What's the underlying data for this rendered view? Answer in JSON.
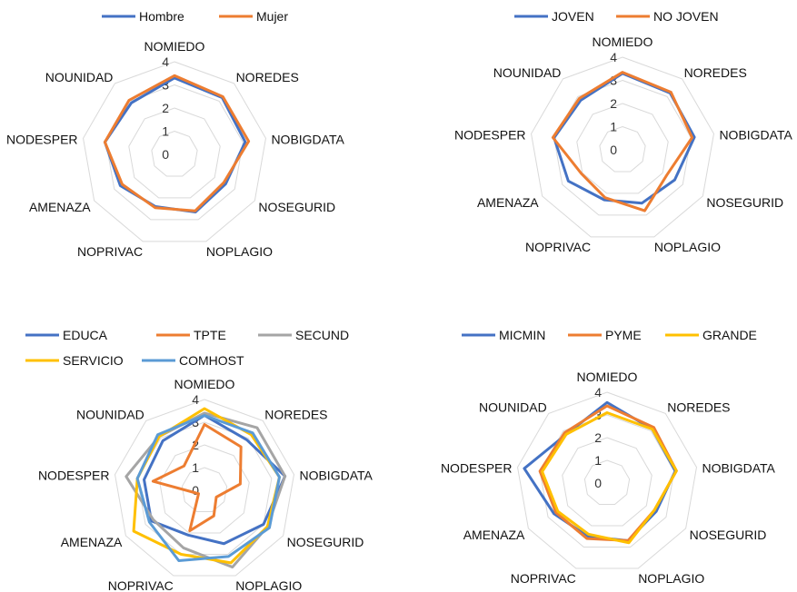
{
  "chart_data": [
    {
      "type": "radar",
      "axes": [
        "NOMIEDO",
        "NOREDES",
        "NOBIGDATA",
        "NOSEGURID",
        "NOPLAGIO",
        "NOPRIVAC",
        "AMENAZA",
        "NODESPER",
        "NOUNIDAD"
      ],
      "ticks": [
        "0",
        "1",
        "2",
        "3",
        "4"
      ],
      "rlim": [
        0,
        4
      ],
      "grid": true,
      "legend": "top",
      "series": [
        {
          "name": "Hombre",
          "color": "#4472C4",
          "values": [
            3.3,
            3.2,
            3.1,
            2.55,
            2.65,
            2.4,
            2.7,
            3.05,
            2.9
          ]
        },
        {
          "name": "Mujer",
          "color": "#ED7D31",
          "values": [
            3.4,
            3.25,
            3.25,
            2.45,
            2.6,
            2.45,
            2.6,
            3.05,
            3.05
          ]
        }
      ]
    },
    {
      "type": "radar",
      "axes": [
        "NOMIEDO",
        "NOREDES",
        "NOBIGDATA",
        "NOSEGURID",
        "NOPLAGIO",
        "NOPRIVAC",
        "AMENAZA",
        "NODESPER",
        "NOUNIDAD"
      ],
      "ticks": [
        "0",
        "1",
        "2",
        "3",
        "4"
      ],
      "rlim": [
        0,
        4
      ],
      "grid": true,
      "legend": "top",
      "series": [
        {
          "name": "JOVEN",
          "color": "#4472C4",
          "values": [
            3.3,
            3.2,
            3.15,
            2.6,
            2.45,
            2.3,
            2.7,
            3.0,
            2.8
          ]
        },
        {
          "name": "NO JOVEN",
          "color": "#ED7D31",
          "values": [
            3.35,
            3.25,
            3.05,
            2.2,
            2.8,
            2.2,
            2.05,
            3.05,
            2.9
          ]
        }
      ]
    },
    {
      "type": "radar",
      "axes": [
        "NOMIEDO",
        "NOREDES",
        "NOBIGDATA",
        "NOSEGURID",
        "NOPLAGIO",
        "NOPRIVAC",
        "AMENAZA",
        "NODESPER",
        "NOUNIDAD"
      ],
      "ticks": [
        "0",
        "1",
        "2",
        "3",
        "4"
      ],
      "rlim": [
        0,
        4
      ],
      "grid": true,
      "legend": "top",
      "series": [
        {
          "name": "EDUCA",
          "color": "#4472C4",
          "values": [
            3.3,
            2.9,
            3.6,
            3.0,
            2.5,
            2.1,
            2.7,
            2.7,
            2.85
          ]
        },
        {
          "name": "TPTE",
          "color": "#ED7D31",
          "values": [
            2.9,
            2.5,
            1.6,
            0.6,
            1.2,
            1.9,
            0.3,
            2.3,
            1.4
          ]
        },
        {
          "name": "SECUND",
          "color": "#A5A5A5",
          "values": [
            3.4,
            3.6,
            3.6,
            3.2,
            3.6,
            2.7,
            2.6,
            3.5,
            3.1
          ]
        },
        {
          "name": "SERVICIO",
          "color": "#FFC000",
          "values": [
            3.6,
            3.2,
            3.35,
            3.2,
            3.4,
            3.0,
            3.6,
            3.0,
            3.1
          ]
        },
        {
          "name": "COMHOST",
          "color": "#5B9BD5",
          "values": [
            3.3,
            3.3,
            3.35,
            3.3,
            3.1,
            3.3,
            2.8,
            3.0,
            3.2
          ]
        }
      ]
    },
    {
      "type": "radar",
      "axes": [
        "NOMIEDO",
        "NOREDES",
        "NOBIGDATA",
        "NOSEGURID",
        "NOPLAGIO",
        "NOPRIVAC",
        "AMENAZA",
        "NODESPER",
        "NOUNIDAD"
      ],
      "ticks": [
        "0",
        "1",
        "2",
        "3",
        "4"
      ],
      "rlim": [
        0,
        4
      ],
      "grid": true,
      "legend": "top",
      "series": [
        {
          "name": "MICMIN",
          "color": "#4472C4",
          "values": [
            3.55,
            3.1,
            3.05,
            2.5,
            2.7,
            2.5,
            2.7,
            3.7,
            2.8
          ]
        },
        {
          "name": "PYME",
          "color": "#ED7D31",
          "values": [
            3.4,
            3.2,
            3.1,
            2.4,
            2.7,
            2.6,
            2.6,
            3.0,
            2.9
          ]
        },
        {
          "name": "GRANDE",
          "color": "#FFC000",
          "values": [
            3.1,
            3.1,
            3.1,
            2.4,
            2.8,
            2.4,
            2.5,
            2.9,
            2.8
          ]
        }
      ]
    }
  ]
}
